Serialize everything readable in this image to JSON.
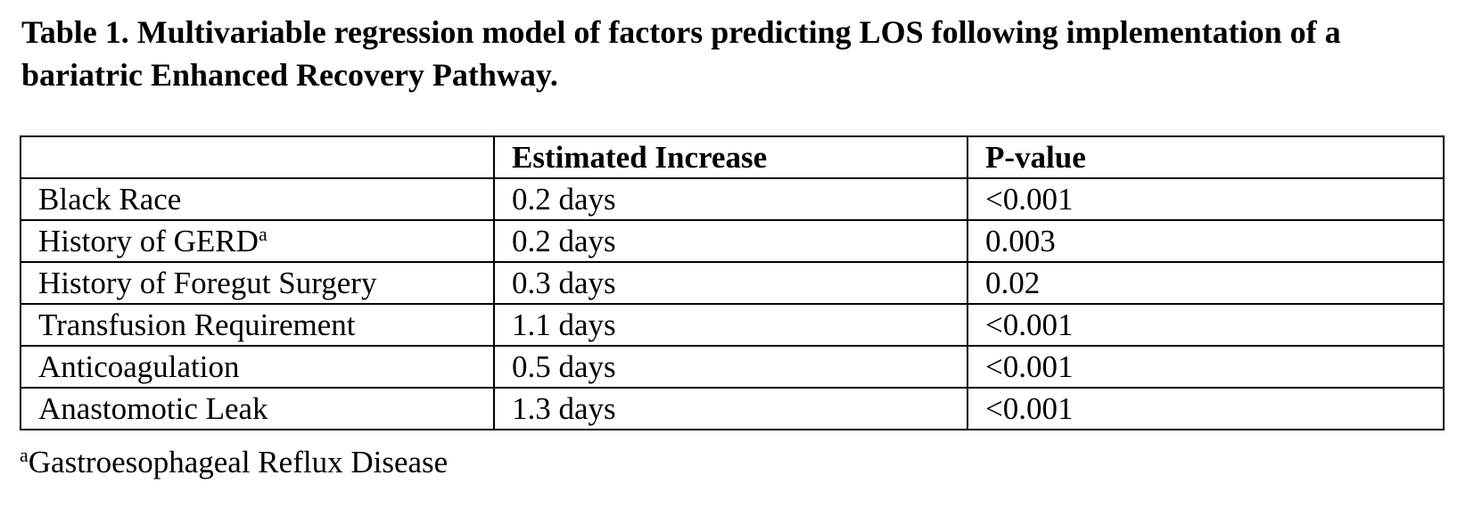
{
  "caption": "Table 1. Multivariable regression model of factors predicting LOS following implementation of a bariatric Enhanced Recovery Pathway.",
  "table": {
    "headers": [
      "",
      "Estimated Increase",
      "P-value"
    ],
    "rows": [
      {
        "factor": "Black Race",
        "footnote_mark": "",
        "increase": "0.2 days",
        "p_value": "<0.001"
      },
      {
        "factor": "History of GERD",
        "footnote_mark": "a",
        "increase": "0.2 days",
        "p_value": "0.003"
      },
      {
        "factor": "History of Foregut Surgery",
        "footnote_mark": "",
        "increase": "0.3 days",
        "p_value": "0.02"
      },
      {
        "factor": "Transfusion Requirement",
        "footnote_mark": "",
        "increase": "1.1 days",
        "p_value": "<0.001"
      },
      {
        "factor": "Anticoagulation",
        "footnote_mark": "",
        "increase": "0.5 days",
        "p_value": "<0.001"
      },
      {
        "factor": "Anastomotic Leak",
        "footnote_mark": "",
        "increase": "1.3 days",
        "p_value": "<0.001"
      }
    ]
  },
  "footnote": {
    "mark": "a",
    "text": "Gastroesophageal Reflux Disease"
  }
}
